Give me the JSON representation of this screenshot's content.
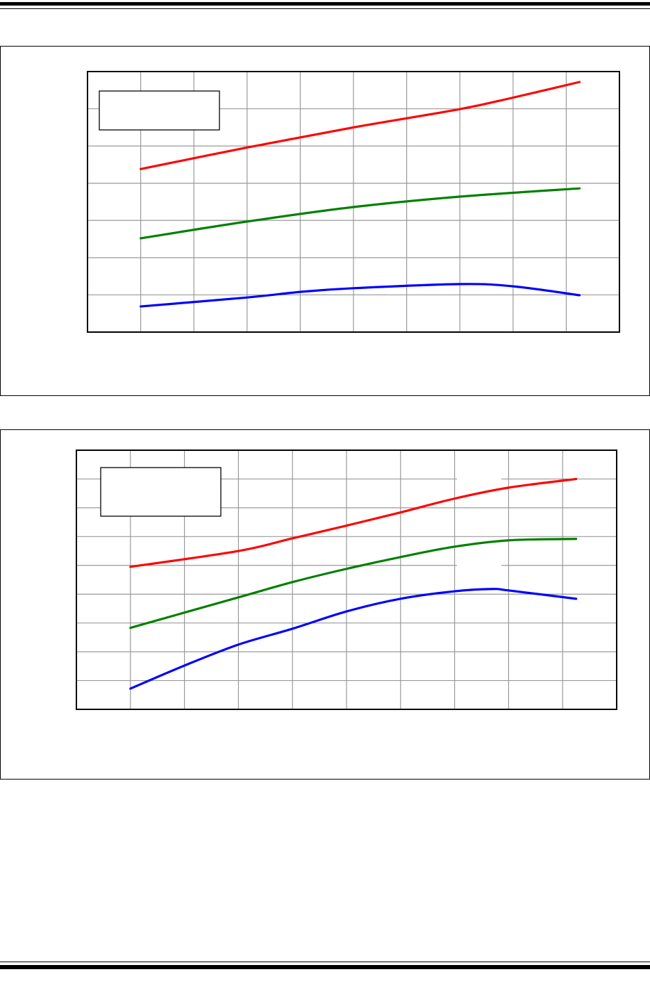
{
  "chart_data": [
    {
      "type": "line",
      "title": "",
      "xlabel": "",
      "ylabel": "",
      "xlim": [
        0,
        10
      ],
      "ylim": [
        0,
        7
      ],
      "grid": true,
      "legend": "top-left",
      "series": [
        {
          "color": "#ff0000",
          "x": [
            1,
            3,
            5,
            7,
            8,
            9.25
          ],
          "y": [
            4.38,
            4.96,
            5.5,
            5.99,
            6.3,
            6.72
          ]
        },
        {
          "color": "#008000",
          "x": [
            1,
            3,
            5,
            7,
            9.25
          ],
          "y": [
            2.52,
            2.97,
            3.36,
            3.64,
            3.86
          ]
        },
        {
          "color": "#0000ff",
          "x": [
            1,
            3,
            4,
            5,
            7,
            8,
            9.25
          ],
          "y": [
            0.69,
            0.93,
            1.08,
            1.18,
            1.29,
            1.23,
            0.99
          ]
        }
      ]
    },
    {
      "type": "line",
      "title": "",
      "xlabel": "",
      "ylabel": "",
      "xlim": [
        0,
        10
      ],
      "ylim": [
        0,
        9
      ],
      "grid": true,
      "legend": "top-left",
      "series": [
        {
          "color": "#ff0000",
          "x": [
            1,
            3,
            4,
            5,
            6,
            7,
            8,
            9.25
          ],
          "y": [
            4.95,
            5.5,
            5.94,
            6.38,
            6.84,
            7.32,
            7.7,
            8.0
          ]
        },
        {
          "color": "#008000",
          "x": [
            1,
            3,
            4,
            5,
            6,
            7,
            8,
            9.25
          ],
          "y": [
            2.83,
            3.89,
            4.42,
            4.88,
            5.29,
            5.65,
            5.87,
            5.92
          ]
        },
        {
          "color": "#0000ff",
          "x": [
            1,
            2,
            3,
            4,
            5,
            6,
            7,
            7.7,
            8,
            9.25
          ],
          "y": [
            0.72,
            1.52,
            2.25,
            2.8,
            3.4,
            3.84,
            4.1,
            4.18,
            4.13,
            3.84
          ]
        }
      ]
    }
  ]
}
